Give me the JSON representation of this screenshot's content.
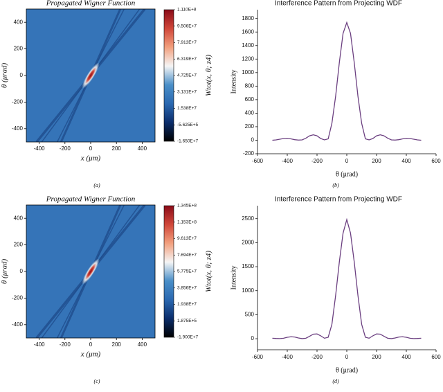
{
  "chart_data": [
    {
      "type": "heatmap",
      "title": "Propagated Wigner Function",
      "x_label": "x (μm)",
      "y_label": "θ (μrad)",
      "xlim": [
        -500,
        500
      ],
      "ylim": [
        -500,
        500
      ],
      "xticks": [
        -400,
        -200,
        0,
        200,
        400
      ],
      "yticks": [
        -400,
        -200,
        0,
        200,
        400
      ],
      "colorbar_label": "Wtot(x, θ; z4)",
      "clim": [
        -16500000,
        111000000
      ],
      "colorbar_ticks": [
        {
          "value": 111000000,
          "label": "1.110E+8"
        },
        {
          "value": 95060000,
          "label": "9.506E+7"
        },
        {
          "value": 79130000,
          "label": "7.913E+7"
        },
        {
          "value": 63190000,
          "label": "6.319E+7"
        },
        {
          "value": 47250000,
          "label": "4.725E+7"
        },
        {
          "value": 31310000,
          "label": "3.131E+7"
        },
        {
          "value": 15380000,
          "label": "1.538E+7"
        },
        {
          "value": -562500,
          "label": "-5.625E+5"
        },
        {
          "value": -16500000,
          "label": "-1.650E+7"
        }
      ],
      "colorscale": [
        "#000000",
        "#0b2d6b",
        "#2a68b0",
        "#4a8fc8",
        "#f5f5f5",
        "#f2a07e",
        "#d0473a",
        "#8a0b18"
      ],
      "caption": "(a)"
    },
    {
      "type": "line",
      "title": "Interference Pattern from Projecting WDF",
      "x_label": "θ (μrad)",
      "y_label": "Intensity",
      "xlim": [
        -600,
        600
      ],
      "ylim": [
        -200,
        1930
      ],
      "xticks": [
        -600,
        -400,
        -200,
        0,
        200,
        400,
        600
      ],
      "yticks": [
        -200,
        0,
        200,
        400,
        600,
        800,
        1000,
        1200,
        1400,
        1600,
        1800
      ],
      "color": "#6b3f80",
      "x": [
        -500,
        -475,
        -450,
        -425,
        -400,
        -375,
        -350,
        -325,
        -300,
        -275,
        -250,
        -225,
        -200,
        -175,
        -150,
        -125,
        -100,
        -75,
        -50,
        -25,
        0,
        25,
        50,
        75,
        100,
        125,
        150,
        175,
        200,
        225,
        250,
        275,
        300,
        325,
        350,
        375,
        400,
        425,
        450,
        475,
        500
      ],
      "values": [
        0,
        5,
        15,
        25,
        28,
        20,
        8,
        2,
        5,
        30,
        65,
        80,
        65,
        25,
        5,
        20,
        250,
        650,
        1150,
        1580,
        1740,
        1580,
        1150,
        650,
        250,
        20,
        5,
        25,
        65,
        80,
        65,
        30,
        5,
        2,
        8,
        20,
        28,
        25,
        15,
        5,
        0
      ],
      "caption": "(b)"
    },
    {
      "type": "heatmap",
      "title": "Propagated Wigner Function",
      "x_label": "x (μm)",
      "y_label": "θ (μrad)",
      "xlim": [
        -500,
        500
      ],
      "ylim": [
        -500,
        500
      ],
      "xticks": [
        -400,
        -200,
        0,
        200,
        400
      ],
      "yticks": [
        -400,
        -200,
        0,
        200,
        400
      ],
      "colorbar_label": "Wtot(x, θ; z4)",
      "clim": [
        -19000000,
        134500000
      ],
      "colorbar_ticks": [
        {
          "value": 134500000,
          "label": "1.345E+8"
        },
        {
          "value": 115300000,
          "label": "1.153E+8"
        },
        {
          "value": 96130000,
          "label": "9.613E+7"
        },
        {
          "value": 76940000,
          "label": "7.694E+7"
        },
        {
          "value": 57750000,
          "label": "5.775E+7"
        },
        {
          "value": 38560000,
          "label": "3.856E+7"
        },
        {
          "value": 19380000,
          "label": "1.938E+7"
        },
        {
          "value": 187500,
          "label": "1.875E+5"
        },
        {
          "value": -19000000,
          "label": "-1.900E+7"
        }
      ],
      "colorscale": [
        "#000000",
        "#0b2d6b",
        "#2a68b0",
        "#4a8fc8",
        "#f5f5f5",
        "#f2a07e",
        "#d0473a",
        "#8a0b18"
      ],
      "caption": "(c)"
    },
    {
      "type": "line",
      "title": "Interference Pattern from Projecting WDF",
      "x_label": "θ (μrad)",
      "y_label": "Intensity",
      "xlim": [
        -600,
        600
      ],
      "ylim": [
        -230,
        2770
      ],
      "xticks": [
        -600,
        -400,
        -200,
        0,
        200,
        400,
        600
      ],
      "yticks": [
        0,
        500,
        1000,
        1500,
        2000,
        2500
      ],
      "color": "#6b3f80",
      "x": [
        -500,
        -475,
        -450,
        -425,
        -400,
        -375,
        -350,
        -325,
        -300,
        -275,
        -250,
        -225,
        -200,
        -175,
        -150,
        -125,
        -100,
        -75,
        -50,
        -25,
        0,
        25,
        50,
        75,
        100,
        125,
        150,
        175,
        200,
        225,
        250,
        275,
        300,
        325,
        350,
        375,
        400,
        425,
        450,
        475,
        500
      ],
      "values": [
        10,
        5,
        2,
        10,
        30,
        40,
        35,
        15,
        2,
        10,
        50,
        95,
        100,
        60,
        10,
        30,
        300,
        900,
        1600,
        2200,
        2480,
        2200,
        1600,
        900,
        300,
        30,
        10,
        60,
        100,
        95,
        50,
        10,
        2,
        15,
        35,
        40,
        30,
        10,
        2,
        5,
        10
      ],
      "caption": "(d)"
    }
  ]
}
